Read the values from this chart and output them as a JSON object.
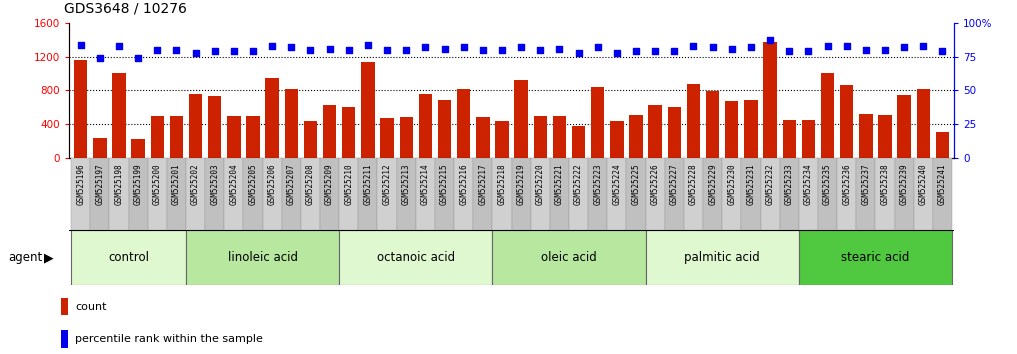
{
  "title": "GDS3648 / 10276",
  "samples": [
    "GSM525196",
    "GSM525197",
    "GSM525198",
    "GSM525199",
    "GSM525200",
    "GSM525201",
    "GSM525202",
    "GSM525203",
    "GSM525204",
    "GSM525205",
    "GSM525206",
    "GSM525207",
    "GSM525208",
    "GSM525209",
    "GSM525210",
    "GSM525211",
    "GSM525212",
    "GSM525213",
    "GSM525214",
    "GSM525215",
    "GSM525216",
    "GSM525217",
    "GSM525218",
    "GSM525219",
    "GSM525220",
    "GSM525221",
    "GSM525222",
    "GSM525223",
    "GSM525224",
    "GSM525225",
    "GSM525226",
    "GSM525227",
    "GSM525228",
    "GSM525229",
    "GSM525230",
    "GSM525231",
    "GSM525232",
    "GSM525233",
    "GSM525234",
    "GSM525235",
    "GSM525236",
    "GSM525237",
    "GSM525238",
    "GSM525239",
    "GSM525240",
    "GSM525241"
  ],
  "counts": [
    1160,
    230,
    1010,
    220,
    490,
    490,
    760,
    730,
    490,
    490,
    940,
    820,
    430,
    620,
    600,
    1140,
    470,
    480,
    760,
    680,
    820,
    480,
    430,
    920,
    490,
    490,
    380,
    840,
    430,
    510,
    620,
    600,
    880,
    790,
    670,
    680,
    1380,
    450,
    450,
    1000,
    860,
    520,
    510,
    740,
    820,
    300
  ],
  "percentile": [
    84,
    74,
    83,
    74,
    80,
    80,
    78,
    79,
    79,
    79,
    83,
    82,
    80,
    81,
    80,
    84,
    80,
    80,
    82,
    81,
    82,
    80,
    80,
    82,
    80,
    81,
    78,
    82,
    78,
    79,
    79,
    79,
    83,
    82,
    81,
    82,
    87,
    79,
    79,
    83,
    83,
    80,
    80,
    82,
    83,
    79
  ],
  "groups": [
    {
      "name": "control",
      "start": 0,
      "end": 6
    },
    {
      "name": "linoleic acid",
      "start": 6,
      "end": 14
    },
    {
      "name": "octanoic acid",
      "start": 14,
      "end": 22
    },
    {
      "name": "oleic acid",
      "start": 22,
      "end": 30
    },
    {
      "name": "palmitic acid",
      "start": 30,
      "end": 38
    },
    {
      "name": "stearic acid",
      "start": 38,
      "end": 46
    }
  ],
  "bar_color": "#CC2200",
  "dot_color": "#0000EE",
  "left_ylim": [
    0,
    1600
  ],
  "right_ylim": [
    0,
    100
  ],
  "left_yticks": [
    0,
    400,
    800,
    1200,
    1600
  ],
  "right_yticks": [
    0,
    25,
    50,
    75,
    100
  ],
  "right_yticklabels": [
    "0",
    "25",
    "50",
    "75",
    "100%"
  ],
  "grid_values": [
    400,
    800,
    1200
  ],
  "plot_bg": "#ffffff",
  "xtick_bg_even": "#d0d0d0",
  "xtick_bg_odd": "#c0c0c0",
  "group_color_light": "#e0f8d0",
  "group_color_mid": "#b8e8a0",
  "group_color_dark": "#50c840",
  "title_fontsize": 10,
  "tick_fontsize": 5.5,
  "group_label_fontsize": 8.5,
  "legend_fontsize": 8
}
